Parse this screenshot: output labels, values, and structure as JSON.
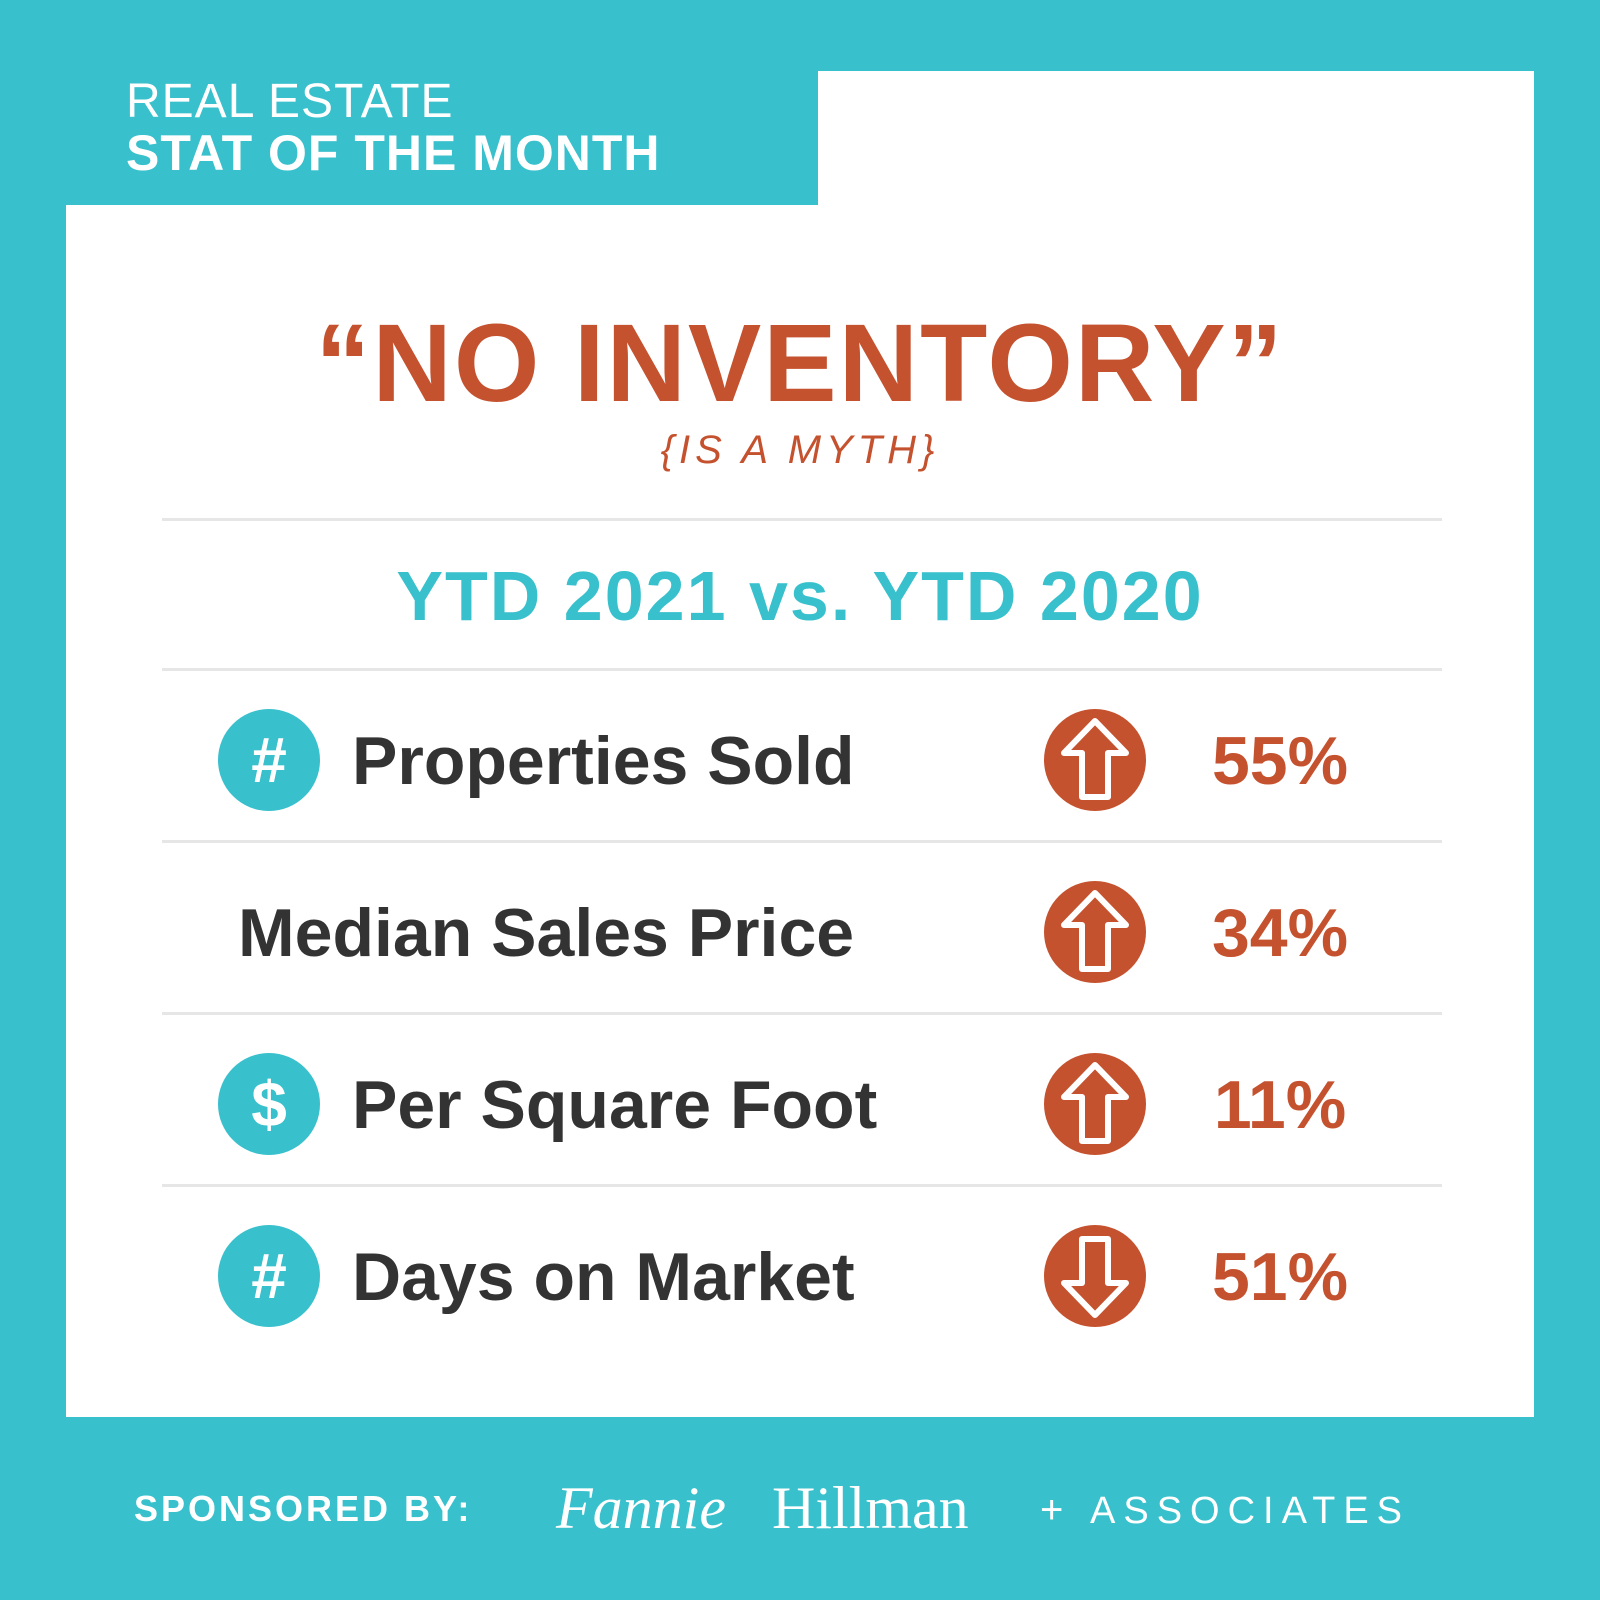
{
  "header": {
    "line1": "REAL ESTATE",
    "line2": "STAT OF THE MONTH"
  },
  "headline": "“NO INVENTORY”",
  "subheadline": "{IS A MYTH}",
  "comparison": "YTD 2021 vs. YTD 2020",
  "stats": [
    {
      "icon": "hash-icon",
      "icon_text": "#",
      "label": "Properties Sold",
      "trend": "up",
      "value": "55%"
    },
    {
      "icon": "none",
      "icon_text": "",
      "label": "Median Sales Price",
      "trend": "up",
      "value": "34%"
    },
    {
      "icon": "dollar-icon",
      "icon_text": "$",
      "label": "Per Square Foot",
      "trend": "up",
      "value": "11%"
    },
    {
      "icon": "hash-icon",
      "icon_text": "#",
      "label": "Days on Market",
      "trend": "down",
      "value": "51%"
    }
  ],
  "footer": {
    "sponsored": "SPONSORED BY:",
    "logo_first": "Fannie",
    "logo_last": "Hillman",
    "logo_plus": "+",
    "logo_suffix": "ASSOCIATES"
  },
  "colors": {
    "teal": "#38c0cc",
    "rust": "#c5522f",
    "dark_text": "#333333",
    "white": "#ffffff"
  }
}
